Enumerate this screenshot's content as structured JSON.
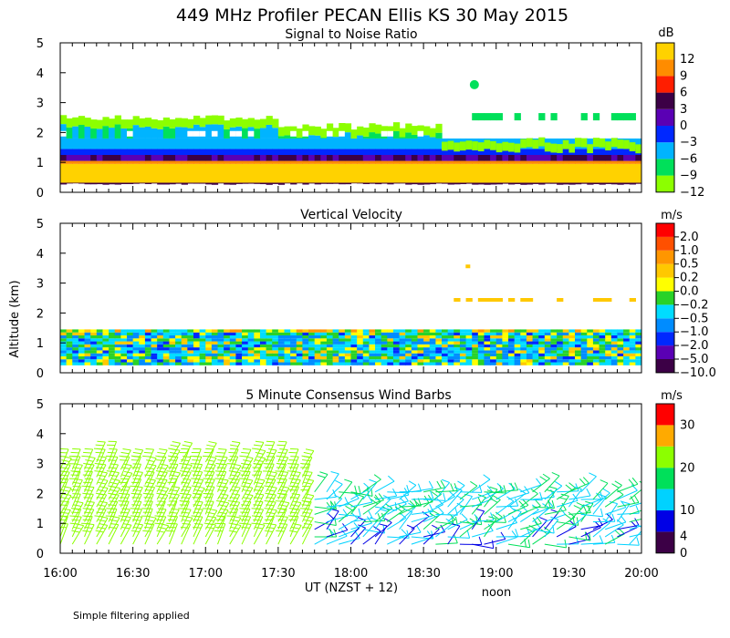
{
  "chart_data": {
    "type": "heatmap",
    "title": "449 MHz Profiler PECAN Ellis KS 30 May 2015",
    "ylabel": "Altitude (km)",
    "xlabel": "UT  (NZST + 12)",
    "x_annotation": "noon",
    "footnote": "Simple filtering applied",
    "x_ticks": [
      "16:00",
      "16:30",
      "17:00",
      "17:30",
      "18:00",
      "18:30",
      "19:00",
      "19:30",
      "20:00"
    ],
    "xlim_hours": [
      16,
      20
    ],
    "y_ticks": [
      "0",
      "1",
      "2",
      "3",
      "4",
      "5"
    ],
    "ylim_km": [
      0,
      5
    ],
    "panels": [
      {
        "title": "Signal to Noise Ratio",
        "units": "dB",
        "colorbar_labels": [
          "12",
          "9",
          "6",
          "3",
          "0",
          "−3",
          "−6",
          "−9",
          "−12"
        ],
        "colorbar_values": [
          12,
          9,
          6,
          3,
          0,
          -3,
          -6,
          -9,
          -12
        ],
        "colors": [
          "#8cff00",
          "#00e05a",
          "#00b4ff",
          "#0028ff",
          "#5a00b4",
          "#3c0046",
          "#ff1e00",
          "#ff8c00",
          "#ffd200"
        ],
        "features": [
          {
            "layer": "0.25-1.0 km",
            "value_db": 12
          },
          {
            "layer": "1.0-1.3 km",
            "value_db": 3
          },
          {
            "layer": "1.3-2.5 km",
            "value_db": -6
          },
          {
            "layer": "2.5-3.0 km",
            "value_db": -11
          }
        ]
      },
      {
        "title": "Vertical Velocity",
        "units": "m/s",
        "colorbar_labels": [
          "2.0",
          "1.0",
          "0.5",
          "0.2",
          "0.0",
          "−0.2",
          "−0.5",
          "−1.0",
          "−2.0",
          "−5.0",
          "−10.0"
        ],
        "colorbar_values": [
          2.0,
          1.0,
          0.5,
          0.2,
          0.0,
          -0.2,
          -0.5,
          -1.0,
          -2.0,
          -5.0,
          -10.0
        ],
        "colors": [
          "#3c0046",
          "#5a00b4",
          "#0028ff",
          "#008cff",
          "#00dcff",
          "#28d228",
          "#ffff00",
          "#ffc800",
          "#ff9600",
          "#ff5000",
          "#ff0000"
        ],
        "features": [
          {
            "layer": "0.25-1.4 km",
            "value_ms": -0.5
          },
          {
            "layer": "1.4-2.8 km",
            "value_ms": 0.0
          }
        ]
      },
      {
        "title": "5 Minute Consensus Wind Barbs",
        "units": "m/s",
        "colorbar_labels": [
          "30",
          "20",
          "10",
          "4",
          "0"
        ],
        "colorbar_values": [
          30,
          20,
          10,
          4,
          0
        ],
        "colors": [
          "#3c0046",
          "#0000e6",
          "#00d2ff",
          "#00e05a",
          "#8cff00",
          "#ffaa00",
          "#ff0000"
        ],
        "features": [
          {
            "time_range": "16:00-17:45",
            "typical_speed_ms": 12
          },
          {
            "time_range": "17:45-20:00",
            "typical_speed_ms": 5
          }
        ]
      }
    ]
  }
}
